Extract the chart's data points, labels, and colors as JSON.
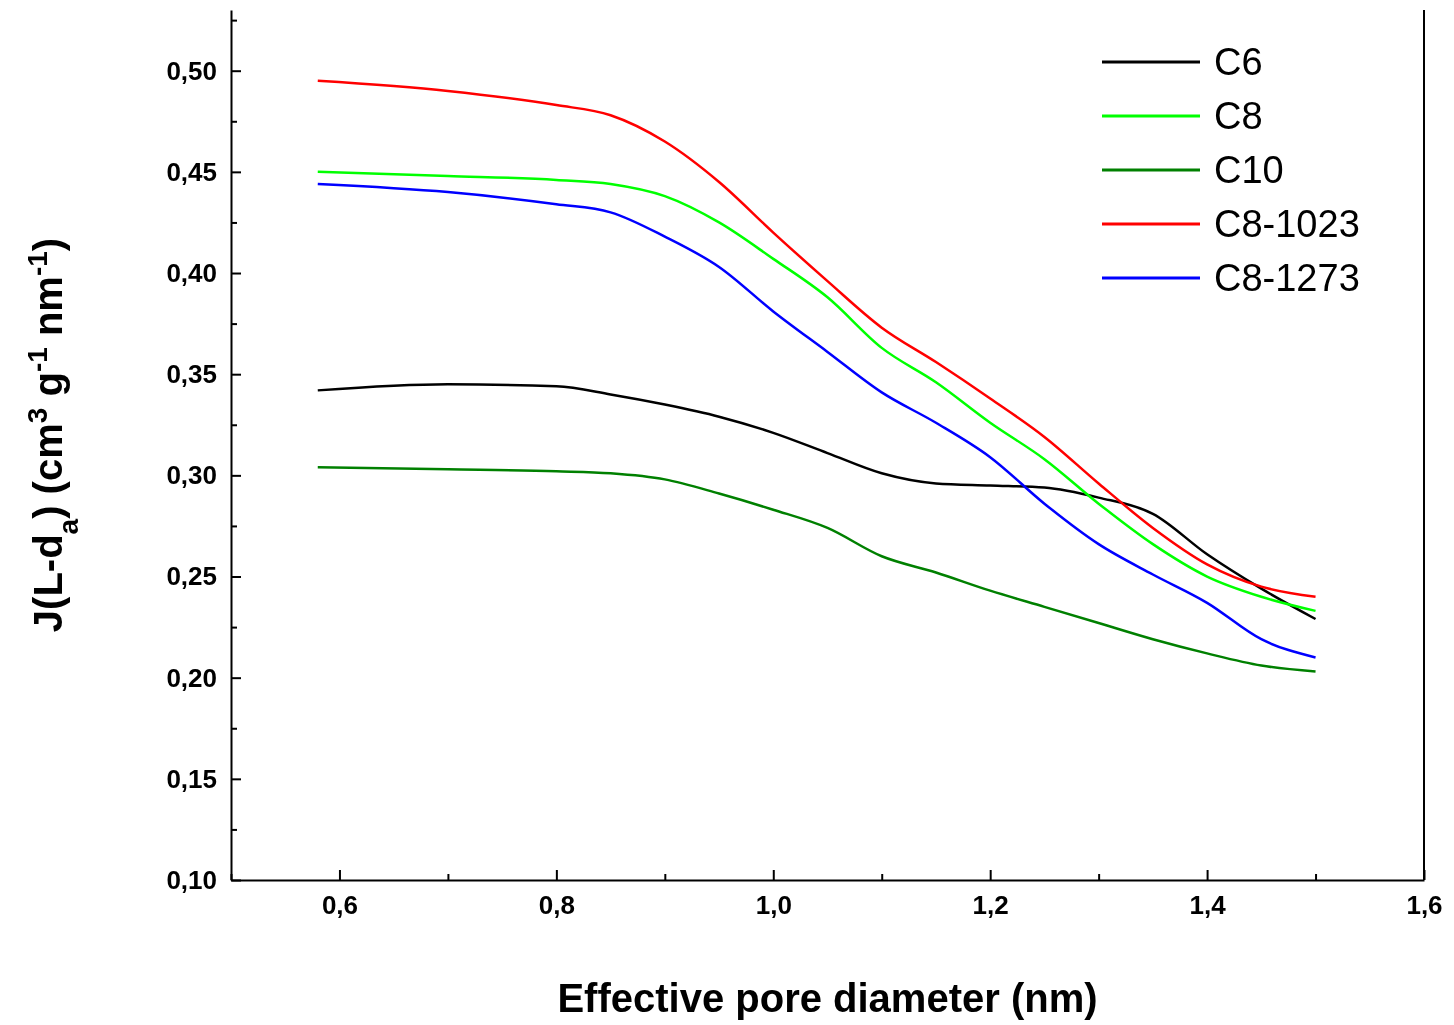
{
  "chart_data": {
    "type": "line",
    "xlabel": "Effective pore diameter (nm)",
    "ylabel": "J(L-d$_{a}$) (cm$^{3}$ g$^{-1}$ nm$^{-1}$)",
    "x": [
      0.58,
      0.7,
      0.8,
      0.85,
      0.9,
      0.95,
      1.0,
      1.05,
      1.1,
      1.15,
      1.2,
      1.25,
      1.3,
      1.35,
      1.4,
      1.45,
      1.5
    ],
    "series": [
      {
        "name": "C6",
        "color": "#000000",
        "values": [
          0.342,
          0.345,
          0.344,
          0.34,
          0.335,
          0.329,
          0.321,
          0.311,
          0.301,
          0.296,
          0.295,
          0.294,
          0.289,
          0.281,
          0.261,
          0.244,
          0.229
        ]
      },
      {
        "name": "C8",
        "color": "#00ff00",
        "values": [
          0.45,
          0.448,
          0.446,
          0.444,
          0.438,
          0.425,
          0.407,
          0.388,
          0.363,
          0.346,
          0.326,
          0.308,
          0.286,
          0.266,
          0.25,
          0.24,
          0.233
        ]
      },
      {
        "name": "C10",
        "color": "#008000",
        "values": [
          0.304,
          0.303,
          0.302,
          0.301,
          0.298,
          0.291,
          0.283,
          0.274,
          0.26,
          0.252,
          0.243,
          0.235,
          0.227,
          0.219,
          0.212,
          0.206,
          0.203
        ]
      },
      {
        "name": "C8-1023",
        "color": "#ff0000",
        "values": [
          0.495,
          0.49,
          0.483,
          0.478,
          0.465,
          0.445,
          0.42,
          0.396,
          0.373,
          0.356,
          0.338,
          0.319,
          0.296,
          0.274,
          0.256,
          0.245,
          0.24
        ]
      },
      {
        "name": "C8-1273",
        "color": "#0000ff",
        "values": [
          0.444,
          0.44,
          0.434,
          0.43,
          0.418,
          0.403,
          0.381,
          0.361,
          0.341,
          0.326,
          0.309,
          0.286,
          0.266,
          0.251,
          0.237,
          0.219,
          0.21
        ]
      }
    ],
    "xlim": [
      0.5,
      1.6
    ],
    "xticks": [
      {
        "value": 0.5,
        "label": null
      },
      {
        "value": 0.6,
        "label": "0,6"
      },
      {
        "value": 0.7,
        "label": null
      },
      {
        "value": 0.8,
        "label": "0,8"
      },
      {
        "value": 0.9,
        "label": null
      },
      {
        "value": 1.0,
        "label": "1,0"
      },
      {
        "value": 1.1,
        "label": null
      },
      {
        "value": 1.2,
        "label": "1,2"
      },
      {
        "value": 1.3,
        "label": null
      },
      {
        "value": 1.4,
        "label": "1,4"
      },
      {
        "value": 1.5,
        "label": null
      },
      {
        "value": 1.6,
        "label": "1,6"
      }
    ],
    "ylim": [
      0.1,
      0.53
    ],
    "yticks": [
      {
        "value": 0.1,
        "label": "0,10"
      },
      {
        "value": 0.125,
        "label": null
      },
      {
        "value": 0.15,
        "label": "0,15"
      },
      {
        "value": 0.175,
        "label": null
      },
      {
        "value": 0.2,
        "label": "0,20"
      },
      {
        "value": 0.225,
        "label": null
      },
      {
        "value": 0.25,
        "label": "0,25"
      },
      {
        "value": 0.275,
        "label": null
      },
      {
        "value": 0.3,
        "label": "0,30"
      },
      {
        "value": 0.325,
        "label": null
      },
      {
        "value": 0.35,
        "label": "0,35"
      },
      {
        "value": 0.375,
        "label": null
      },
      {
        "value": 0.4,
        "label": "0,40"
      },
      {
        "value": 0.425,
        "label": null
      },
      {
        "value": 0.45,
        "label": "0,45"
      },
      {
        "value": 0.475,
        "label": null
      },
      {
        "value": 0.5,
        "label": "0,50"
      },
      {
        "value": 0.525,
        "label": null
      }
    ],
    "grid": false,
    "legend": "top right",
    "line_style": "solid"
  }
}
